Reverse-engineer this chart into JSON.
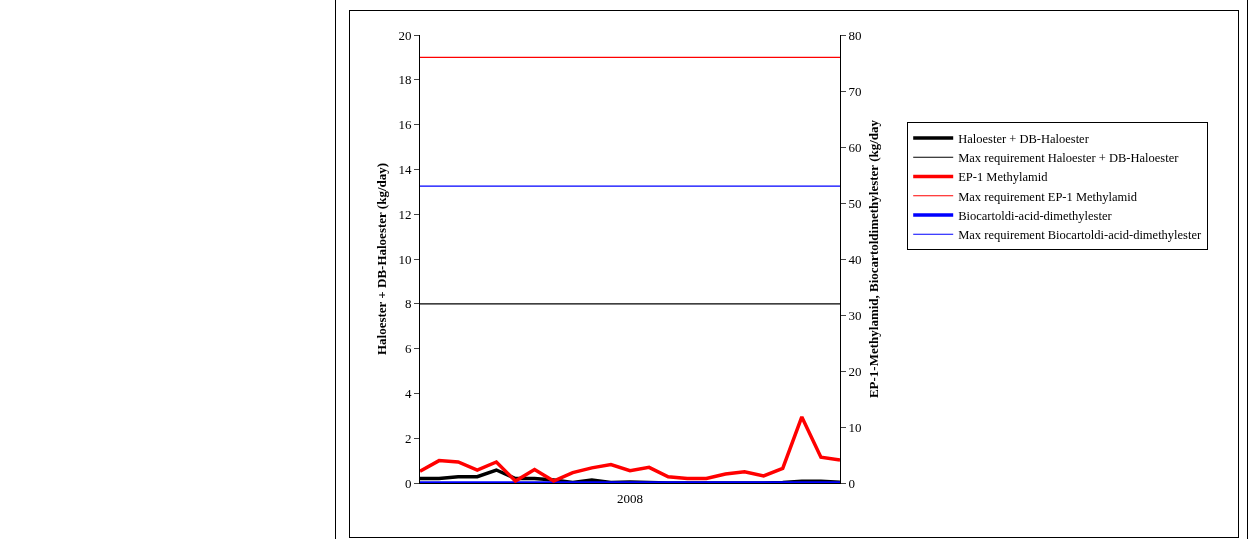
{
  "chart_data": {
    "type": "line",
    "xlabel": "2008",
    "ylabel": "Haloester + DB-Haloester (kg/day)",
    "y2label": "EP-1-Methylamid, Biocartoldimethylester (kg/day",
    "categories": [
      null,
      null,
      null,
      null,
      null,
      null,
      null,
      null,
      null,
      null,
      null,
      null,
      null,
      null,
      null,
      null,
      null,
      null,
      null,
      null,
      null,
      null,
      null
    ],
    "series": [
      {
        "name": "Haloester + DB-Haloester",
        "color": "#000000",
        "values": [
          0.2,
          0.2,
          0.28,
          0.28,
          0.58,
          0.2,
          0.2,
          0.13,
          0.02,
          0.13,
          0.02,
          0.05,
          0.02,
          0,
          0,
          0,
          0,
          0,
          0,
          0.02,
          0.08,
          0.08,
          0.03
        ]
      },
      {
        "name": "Max requirement Haloester + DB-Haloester",
        "color": "#000000",
        "values": [
          8,
          8,
          8,
          8,
          8,
          8,
          8,
          8,
          8,
          8,
          8,
          8,
          8,
          8,
          8,
          8,
          8,
          8,
          8,
          8,
          8,
          8,
          8
        ]
      },
      {
        "name": "EP-1 Methylamid",
        "color": "#ff0000",
        "axis": "y2",
        "values": [
          2.1,
          4.0,
          3.75,
          2.3,
          3.75,
          0.35,
          2.4,
          0.35,
          1.85,
          2.7,
          3.3,
          2.2,
          2.8,
          1.1,
          0.8,
          0.8,
          1.6,
          2.0,
          1.25,
          2.6,
          11.8,
          4.6,
          4.1
        ]
      },
      {
        "name": "Max requirement EP-1 Methylamid",
        "color": "#ff0000",
        "axis": "y2",
        "values": [
          76,
          76,
          76,
          76,
          76,
          76,
          76,
          76,
          76,
          76,
          76,
          76,
          76,
          76,
          76,
          76,
          76,
          76,
          76,
          76,
          76,
          76,
          76
        ]
      },
      {
        "name": "Biocartoldi-acid-dimethylester",
        "color": "#0000ff",
        "axis": "y2",
        "values": [
          0,
          0,
          0,
          0,
          0,
          0,
          0,
          0,
          0,
          0,
          0,
          0,
          0,
          0,
          0,
          0,
          0,
          0,
          0,
          0,
          0,
          0,
          0
        ]
      },
      {
        "name": "Max requirement Biocartoldi-acid-dimethylester",
        "color": "#0000ff",
        "axis": "y2",
        "values": [
          53,
          53,
          53,
          53,
          53,
          53,
          53,
          53,
          53,
          53,
          53,
          53,
          53,
          53,
          53,
          53,
          53,
          53,
          53,
          53,
          53,
          53,
          53
        ]
      }
    ],
    "ylim": [
      0,
      20
    ],
    "yticks": [
      0,
      2,
      4,
      6,
      8,
      10,
      12,
      14,
      16,
      18,
      20
    ],
    "y2lim": [
      0,
      80
    ],
    "y2ticks": [
      0,
      10,
      20,
      30,
      40,
      50,
      60,
      70,
      80
    ],
    "grid": false,
    "legend": "right",
    "marker": "none",
    "line_style": "solid"
  }
}
